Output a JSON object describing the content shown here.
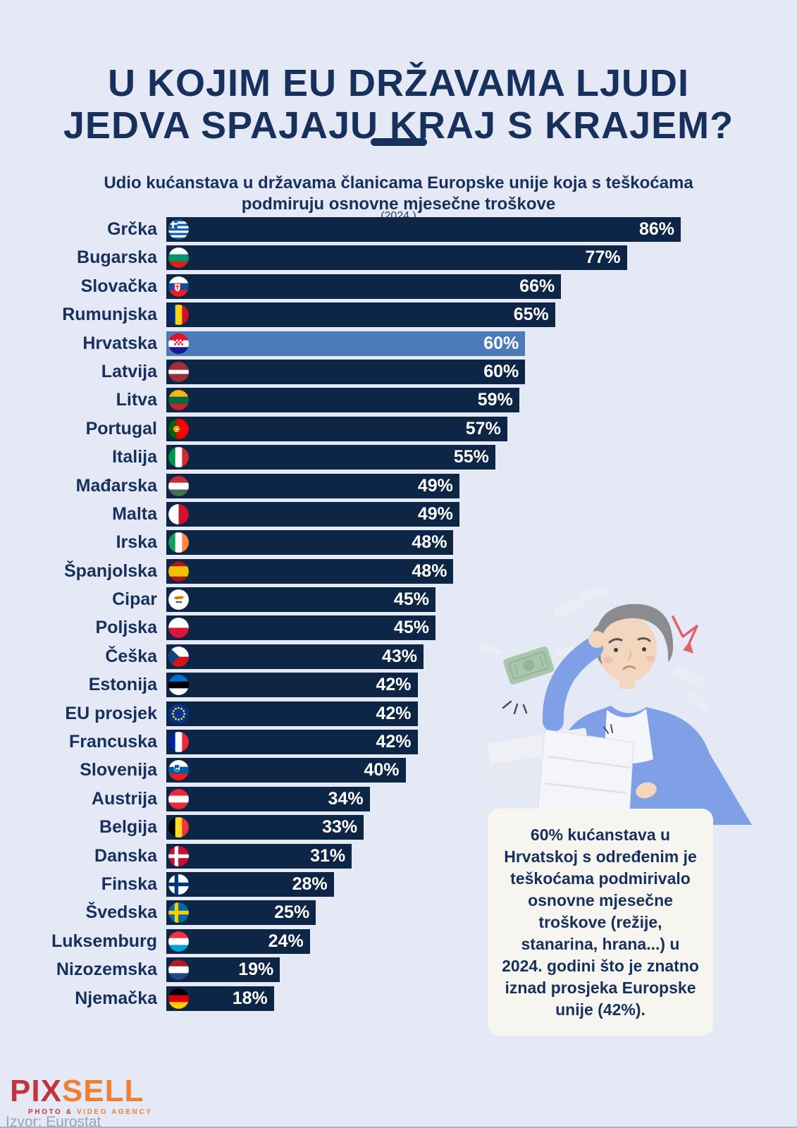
{
  "header": {
    "title_line1": "U KOJIM EU DRŽAVAMA LJUDI",
    "title_line2": "JEDVA SPAJAJU KRAJ S KRAJEM?",
    "subtitle_line1": "Udio kućanstava u državama članicama Europske unije koja s teškoćama",
    "subtitle_line2": "podmiruju osnovne mjesečne troškove",
    "year_note": "(2024.)"
  },
  "chart_data": {
    "type": "bar",
    "orientation": "horizontal",
    "title": "Udio kućanstava u državama članicama Europske unije koja s teškoćama podmiruju osnovne mjesečne troškove",
    "year": "2024.",
    "unit": "%",
    "value_axis_max": 86,
    "grid": false,
    "value_labels": "inside-bar-right",
    "highlight_category": "Hrvatska",
    "categories": [
      "Grčka",
      "Bugarska",
      "Slovačka",
      "Rumunjska",
      "Hrvatska",
      "Latvija",
      "Litva",
      "Portugal",
      "Italija",
      "Mađarska",
      "Malta",
      "Irska",
      "Španjolska",
      "Cipar",
      "Poljska",
      "Češka",
      "Estonija",
      "EU prosjek",
      "Francuska",
      "Slovenija",
      "Austrija",
      "Belgija",
      "Danska",
      "Finska",
      "Švedska",
      "Luksemburg",
      "Nizozemska",
      "Njemačka"
    ],
    "values": [
      86,
      77,
      66,
      65,
      60,
      60,
      59,
      57,
      55,
      49,
      49,
      48,
      48,
      45,
      45,
      43,
      42,
      42,
      42,
      40,
      34,
      33,
      31,
      28,
      25,
      24,
      19,
      18
    ],
    "flags": [
      "greece",
      "bulgaria",
      "slovakia",
      "romania",
      "croatia",
      "latvia",
      "lithuania",
      "portugal",
      "italy",
      "hungary",
      "malta",
      "ireland",
      "spain",
      "cyprus",
      "poland",
      "czechia",
      "estonia",
      "eu",
      "france",
      "slovenia",
      "austria",
      "belgium",
      "denmark",
      "finland",
      "sweden",
      "luxembourg",
      "netherlands",
      "germany"
    ]
  },
  "flag_defs": {
    "greece": {
      "type": "greece"
    },
    "bulgaria": {
      "type": "h",
      "colors": [
        "#ffffff",
        "#00966E",
        "#D62612"
      ]
    },
    "slovakia": {
      "type": "h",
      "colors": [
        "#ffffff",
        "#0B4EA2",
        "#EE1C25"
      ],
      "emblem": "slovakia"
    },
    "romania": {
      "type": "v",
      "colors": [
        "#002B7F",
        "#FCD116",
        "#CE1126"
      ]
    },
    "croatia": {
      "type": "h",
      "colors": [
        "#E8112D",
        "#ffffff",
        "#171796"
      ],
      "emblem": "croatia"
    },
    "latvia": {
      "type": "h",
      "colors": [
        "#9E3039",
        "#ffffff",
        "#9E3039"
      ],
      "ratios": [
        2,
        1,
        2
      ]
    },
    "lithuania": {
      "type": "h",
      "colors": [
        "#FDB913",
        "#006A44",
        "#C1272D"
      ]
    },
    "portugal": {
      "type": "v",
      "colors": [
        "#006600",
        "#FF0000"
      ],
      "ratios": [
        2,
        3
      ],
      "emblem": "portugal"
    },
    "italy": {
      "type": "v",
      "colors": [
        "#009246",
        "#ffffff",
        "#CE2B37"
      ]
    },
    "hungary": {
      "type": "h",
      "colors": [
        "#CE2939",
        "#ffffff",
        "#477050"
      ]
    },
    "malta": {
      "type": "v",
      "colors": [
        "#ffffff",
        "#CF142B"
      ]
    },
    "ireland": {
      "type": "v",
      "colors": [
        "#169B62",
        "#ffffff",
        "#FF883E"
      ]
    },
    "spain": {
      "type": "h",
      "colors": [
        "#AA151B",
        "#F1BF00",
        "#AA151B"
      ],
      "ratios": [
        1,
        2,
        1
      ]
    },
    "cyprus": {
      "type": "cyprus"
    },
    "poland": {
      "type": "h",
      "colors": [
        "#ffffff",
        "#DC143C"
      ]
    },
    "czechia": {
      "type": "czechia"
    },
    "estonia": {
      "type": "h",
      "colors": [
        "#0072CE",
        "#000000",
        "#ffffff"
      ]
    },
    "eu": {
      "type": "eu"
    },
    "france": {
      "type": "v",
      "colors": [
        "#002395",
        "#ffffff",
        "#ED2939"
      ]
    },
    "slovenia": {
      "type": "h",
      "colors": [
        "#ffffff",
        "#005DA4",
        "#ED1C24"
      ],
      "emblem": "slovenia"
    },
    "austria": {
      "type": "h",
      "colors": [
        "#ED2939",
        "#ffffff",
        "#ED2939"
      ]
    },
    "belgium": {
      "type": "v",
      "colors": [
        "#000000",
        "#FDDA24",
        "#EF3340"
      ]
    },
    "denmark": {
      "type": "nordic",
      "bg": "#C8102E",
      "cross": "#ffffff"
    },
    "finland": {
      "type": "nordic",
      "bg": "#ffffff",
      "cross": "#003580"
    },
    "sweden": {
      "type": "nordic",
      "bg": "#006AA7",
      "cross": "#FECC02"
    },
    "luxembourg": {
      "type": "h",
      "colors": [
        "#EF3340",
        "#ffffff",
        "#00A2E1"
      ]
    },
    "netherlands": {
      "type": "h",
      "colors": [
        "#AE1C28",
        "#ffffff",
        "#21468B"
      ]
    },
    "germany": {
      "type": "h",
      "colors": [
        "#000000",
        "#DD0000",
        "#FFCE00"
      ]
    }
  },
  "annotation": {
    "text": "60% kućanstava u Hrvatskoj s određenim je teškoćama podmirivalo osnovne mjesečne troškove (režije, stanarina, hrana...) u 2024. godini što je znatno iznad prosjeka Europske unije (42%)."
  },
  "footer": {
    "logo_part1": "PIX",
    "logo_part2": "SELL",
    "tagline_part1": "PHOTO &",
    "tagline_part2": " VIDEO AGENCY",
    "source": "Izvor: Eurostat"
  },
  "colors": {
    "background": "#e4e9f5",
    "bar": "#0e2646",
    "highlight_bar": "#4d7bb8",
    "title_text": "#17305c",
    "value_text": "#ffffff",
    "callout_bg": "#f7f5f0",
    "logo_red": "#c23540",
    "logo_orange": "#ef8033",
    "source_gray": "#9aa5ba",
    "arrow_red": "#e2606a"
  }
}
